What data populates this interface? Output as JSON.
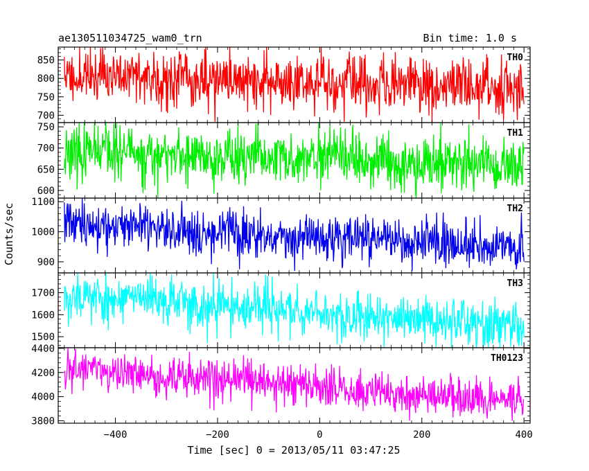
{
  "header": {
    "title": "ae130511034725_wam0_trn",
    "bin_time": "Bin time: 1.0 s"
  },
  "chart_data": {
    "type": "line",
    "title": "ae130511034725_wam0_trn",
    "xlabel": "Time [sec] 0 = 2013/05/11 03:47:25",
    "ylabel": "Counts/sec",
    "xlim": [
      -512,
      412
    ],
    "x_ticks": [
      -400,
      -200,
      0,
      200,
      400
    ],
    "x_tick_labels": [
      "−400",
      "−200",
      "0",
      "200",
      "400"
    ],
    "x_range": [
      -500,
      400
    ],
    "grid": false,
    "panels": [
      {
        "name": "TH0",
        "color": "#ff0000",
        "ylim": [
          680,
          885
        ],
        "y_ticks": [
          700,
          750,
          800,
          850
        ],
        "trend_start": 810,
        "trend_end": 775,
        "amplitude": 45,
        "seed": 11
      },
      {
        "name": "TH1",
        "color": "#00ee00",
        "ylim": [
          582,
          760
        ],
        "y_ticks": [
          600,
          650,
          700,
          750
        ],
        "trend_start": 690,
        "trend_end": 655,
        "amplitude": 38,
        "seed": 23
      },
      {
        "name": "TH2",
        "color": "#0000ee",
        "ylim": [
          863,
          1112
        ],
        "y_ticks": [
          900,
          1000,
          1100
        ],
        "trend_start": 1030,
        "trend_end": 945,
        "amplitude": 45,
        "seed": 37
      },
      {
        "name": "TH3",
        "color": "#00ffff",
        "ylim": [
          1450,
          1790
        ],
        "y_ticks": [
          1500,
          1600,
          1700
        ],
        "trend_start": 1690,
        "trend_end": 1545,
        "amplitude": 65,
        "seed": 53
      },
      {
        "name": "TH0123",
        "color": "#ff00ff",
        "ylim": [
          3780,
          4405
        ],
        "y_ticks": [
          3800,
          4000,
          4200,
          4400
        ],
        "trend_start": 4230,
        "trend_end": 3950,
        "amplitude": 100,
        "seed": 71
      }
    ]
  }
}
